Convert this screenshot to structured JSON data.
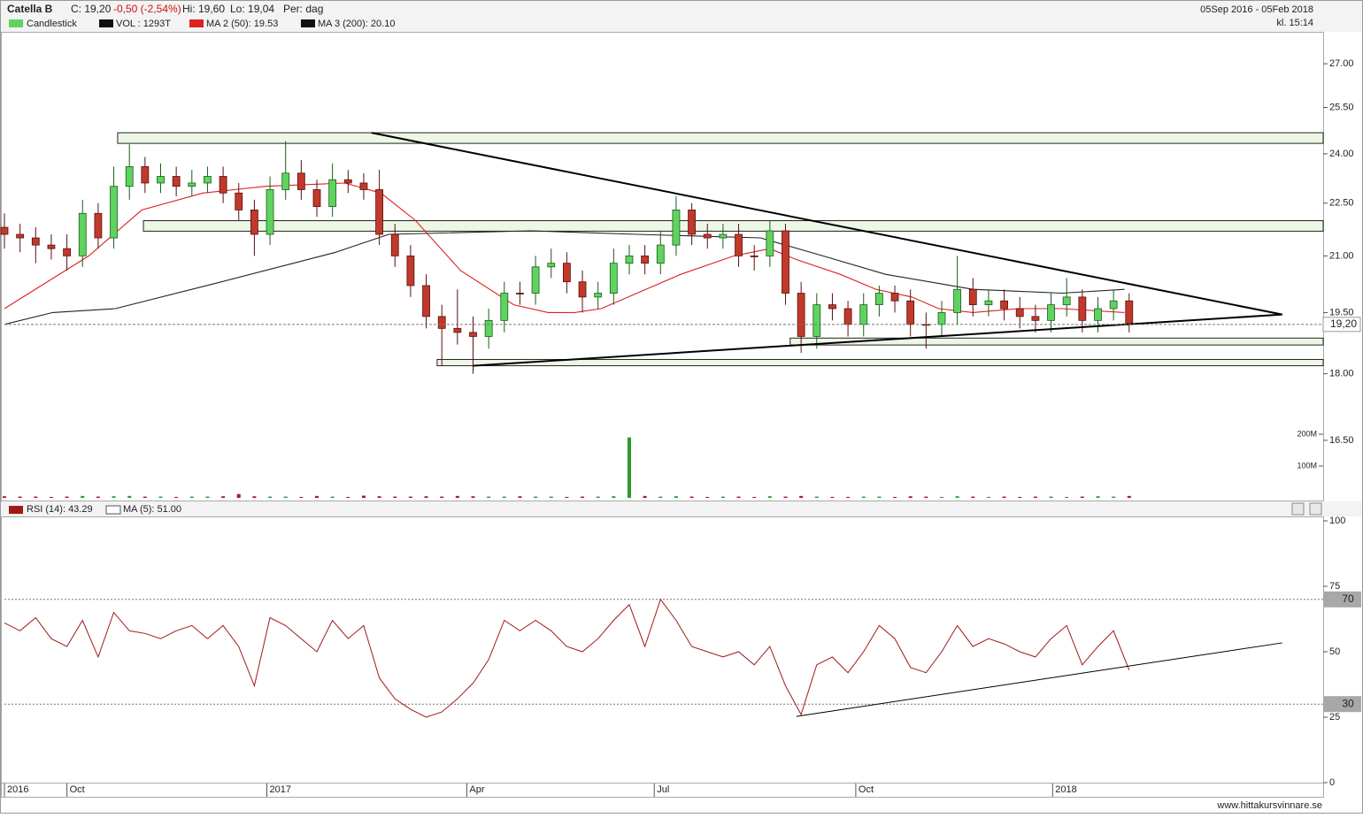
{
  "chart_data": {
    "type": "candlestick",
    "header": {
      "symbol": "Catella B",
      "close": "C: 19,20",
      "change": "-0,50 (-2,54%)",
      "high": "Hi: 19,60",
      "low": "Lo: 19,04",
      "period": "Per: dag",
      "range": "05Sep 2016 - 05Feb 2018",
      "time": "kl. 15:14"
    },
    "legend": {
      "candles": "Candlestick",
      "volume": "VOL : 1293T",
      "ma50": "MA 2 (50): 19.53",
      "ma200": "MA 3 (200): 20.10"
    },
    "footer": "www.hittakursvinnare.se",
    "log_scale": true,
    "up_color": "#5fd35f",
    "down_color": "#c0392b",
    "xlim": [
      0,
      84.42
    ],
    "xticks": [
      {
        "value": 0,
        "label": "2016"
      },
      {
        "value": 4.0,
        "label": "Oct"
      },
      {
        "value": 16.8,
        "label": "2017"
      },
      {
        "value": 29.6,
        "label": "Apr"
      },
      {
        "value": 41.6,
        "label": "Jul"
      },
      {
        "value": 54.5,
        "label": "Oct"
      },
      {
        "value": 67.1,
        "label": "2018"
      }
    ],
    "ylim": [
      15.25,
      28.15
    ],
    "yticks": [
      {
        "value": 27,
        "label": "27.00"
      },
      {
        "value": 25.5,
        "label": "25.50"
      },
      {
        "value": 24,
        "label": "24.00"
      },
      {
        "value": 22.5,
        "label": "22.50"
      },
      {
        "value": 21,
        "label": "21.00"
      },
      {
        "value": 19.5,
        "label": "19.50"
      },
      {
        "value": 18,
        "label": "18.00"
      },
      {
        "value": 16.5,
        "label": "16.50"
      }
    ],
    "x": [
      0,
      1,
      2,
      3,
      4,
      5,
      6,
      7,
      8,
      9,
      10,
      11,
      12,
      13,
      14,
      15,
      16,
      17,
      18,
      19,
      20,
      21,
      22,
      23,
      24,
      25,
      26,
      27,
      28,
      29,
      30,
      31,
      32,
      33,
      34,
      35,
      36,
      37,
      38,
      39,
      40,
      41,
      42,
      43,
      44,
      45,
      46,
      47,
      48,
      49,
      50,
      51,
      52,
      53,
      54,
      55,
      56,
      57,
      58,
      59,
      60,
      61,
      62,
      63,
      64,
      65,
      66,
      67,
      68,
      69,
      70,
      71,
      72
    ],
    "open": [
      21.8,
      21.6,
      21.5,
      21.3,
      21.2,
      21.0,
      22.2,
      21.5,
      23.0,
      23.6,
      23.1,
      23.3,
      23.0,
      23.1,
      23.3,
      22.8,
      22.3,
      21.6,
      22.9,
      23.4,
      22.9,
      22.4,
      23.2,
      23.1,
      22.9,
      21.6,
      21.0,
      20.2,
      19.4,
      19.1,
      19.0,
      18.9,
      19.3,
      20.0,
      20.0,
      20.7,
      20.8,
      20.3,
      19.9,
      20.0,
      20.8,
      21.0,
      20.8,
      21.3,
      22.3,
      21.6,
      21.5,
      21.6,
      21.0,
      21.0,
      21.7,
      20.0,
      18.9,
      19.7,
      19.6,
      19.2,
      19.7,
      20.0,
      19.8,
      19.2,
      19.2,
      19.5,
      20.1,
      19.7,
      19.8,
      19.6,
      19.4,
      19.3,
      19.7,
      19.9,
      19.3,
      19.6,
      19.8
    ],
    "high": [
      22.2,
      21.9,
      21.8,
      21.6,
      21.6,
      22.6,
      22.5,
      23.6,
      24.3,
      23.9,
      23.7,
      23.6,
      23.5,
      23.6,
      23.6,
      23.1,
      22.6,
      23.3,
      24.4,
      23.8,
      23.2,
      23.7,
      23.5,
      23.4,
      23.5,
      21.9,
      21.3,
      20.5,
      19.7,
      20.1,
      19.4,
      19.6,
      20.3,
      20.3,
      21.0,
      21.2,
      21.1,
      20.6,
      20.3,
      21.2,
      21.3,
      21.3,
      21.7,
      22.7,
      22.5,
      21.9,
      21.9,
      21.9,
      21.3,
      22.0,
      21.9,
      20.3,
      20.0,
      20.0,
      19.8,
      20.0,
      20.2,
      20.2,
      20.1,
      19.5,
      19.8,
      21.0,
      20.4,
      20.1,
      20.1,
      19.9,
      19.7,
      20.0,
      20.4,
      20.1,
      19.9,
      20.1,
      20.0
    ],
    "low": [
      21.2,
      21.1,
      20.8,
      20.9,
      20.6,
      20.7,
      21.2,
      21.2,
      22.6,
      22.8,
      22.8,
      22.7,
      22.7,
      22.8,
      22.5,
      22.0,
      21.0,
      21.3,
      22.6,
      22.6,
      22.1,
      22.1,
      22.8,
      22.6,
      21.3,
      20.7,
      19.9,
      19.1,
      18.2,
      18.7,
      18.0,
      18.6,
      19.0,
      19.7,
      19.7,
      20.4,
      20.0,
      19.5,
      19.6,
      19.7,
      20.5,
      20.5,
      20.5,
      21.0,
      21.3,
      21.2,
      21.2,
      20.7,
      20.6,
      20.7,
      19.7,
      18.5,
      18.6,
      19.3,
      18.9,
      18.9,
      19.4,
      19.5,
      18.9,
      18.6,
      18.9,
      19.2,
      19.4,
      19.4,
      19.3,
      19.1,
      19.0,
      19.0,
      19.4,
      19.0,
      19.0,
      19.3,
      19.0
    ],
    "close": [
      21.6,
      21.5,
      21.3,
      21.2,
      21.0,
      22.2,
      21.5,
      23.0,
      23.6,
      23.1,
      23.3,
      23.0,
      23.1,
      23.3,
      22.8,
      22.3,
      21.6,
      22.9,
      23.4,
      22.9,
      22.4,
      23.2,
      23.1,
      22.9,
      21.6,
      21.0,
      20.2,
      19.4,
      19.1,
      19.0,
      18.9,
      19.3,
      20.0,
      20.0,
      20.7,
      20.8,
      20.3,
      19.9,
      20.0,
      20.8,
      21.0,
      20.8,
      21.3,
      22.3,
      21.6,
      21.5,
      21.6,
      21.0,
      21.0,
      21.7,
      20.0,
      18.9,
      19.7,
      19.6,
      19.2,
      19.7,
      20.0,
      19.8,
      19.2,
      19.2,
      19.5,
      20.1,
      19.7,
      19.8,
      19.6,
      19.4,
      19.3,
      19.7,
      19.9,
      19.3,
      19.6,
      19.8,
      19.2
    ],
    "series": [
      {
        "name": "MA 2 (50)",
        "color": "#e02020",
        "x": [
          0,
          5.4,
          8.8,
          12.7,
          16.7,
          21.8,
          24.1,
          26.3,
          29.2,
          32.6,
          34.8,
          36.5,
          38.2,
          40.5,
          43.3,
          46.7,
          49,
          50.7,
          53.5,
          55.8,
          58.1,
          59.8,
          62,
          64.9,
          67.7,
          71.7
        ],
        "values": [
          19.6,
          21.0,
          22.3,
          22.8,
          23.0,
          23.1,
          22.8,
          22.0,
          20.6,
          19.7,
          19.5,
          19.5,
          19.6,
          20.0,
          20.5,
          21.0,
          21.2,
          20.9,
          20.5,
          20.1,
          19.9,
          19.6,
          19.5,
          19.6,
          19.6,
          19.5
        ]
      },
      {
        "name": "MA 3 (200)",
        "color": "#222222",
        "x": [
          0,
          3.1,
          7.1,
          13.9,
          21.2,
          24.6,
          33.7,
          40.5,
          48.4,
          52.4,
          56.4,
          62,
          67.7,
          71.7
        ],
        "values": [
          19.2,
          19.5,
          19.6,
          20.3,
          21.1,
          21.6,
          21.7,
          21.6,
          21.5,
          21.0,
          20.5,
          20.1,
          20.0,
          20.1
        ]
      }
    ],
    "last_price": {
      "value": 19.2,
      "label": "19,20"
    },
    "zones": [
      {
        "x_start": 7.25,
        "low": 24.33,
        "high": 24.67
      },
      {
        "x_start": 8.9,
        "low": 21.69,
        "high": 21.99
      },
      {
        "x_start": 50.3,
        "low": 18.69,
        "high": 18.86
      },
      {
        "x_start": 27.7,
        "low": 18.19,
        "high": 18.34
      }
    ],
    "trendlines": [
      {
        "x": [
          23.5,
          81.8
        ],
        "values": [
          24.67,
          19.45
        ]
      },
      {
        "x": [
          30.0,
          81.8
        ],
        "values": [
          18.19,
          19.45
        ]
      }
    ],
    "volume": {
      "ylim": [
        0,
        200
      ],
      "yticks": [
        {
          "value": 200,
          "label": "200M"
        },
        {
          "value": 100,
          "label": "100M"
        }
      ],
      "values": [
        5,
        4,
        4,
        3,
        4,
        6,
        4,
        5,
        6,
        4,
        4,
        3,
        4,
        4,
        5,
        12,
        5,
        4,
        4,
        3,
        6,
        4,
        3,
        7,
        5,
        4,
        4,
        5,
        4,
        6,
        5,
        4,
        4,
        5,
        4,
        4,
        3,
        4,
        4,
        5,
        190,
        6,
        4,
        5,
        4,
        3,
        4,
        4,
        3,
        5,
        4,
        6,
        4,
        3,
        3,
        4,
        4,
        3,
        5,
        4,
        3,
        5,
        4,
        3,
        4,
        3,
        4,
        4,
        3,
        4,
        5,
        4,
        6
      ]
    },
    "rsi": {
      "legend": "RSI (14): 43.29",
      "ma_legend": "MA (5): 51.00",
      "color": "#a01818",
      "ylim": [
        0,
        100
      ],
      "yticks": [
        0,
        25,
        50,
        75,
        100
      ],
      "levels": [
        70,
        30
      ],
      "values": [
        61,
        58,
        63,
        55,
        52,
        62,
        48,
        65,
        58,
        57,
        55,
        58,
        60,
        55,
        60,
        52,
        37,
        63,
        60,
        55,
        50,
        62,
        55,
        60,
        40,
        32,
        28,
        25,
        27,
        32,
        38,
        47,
        62,
        58,
        62,
        58,
        52,
        50,
        55,
        62,
        68,
        52,
        70,
        62,
        52,
        50,
        48,
        50,
        45,
        52,
        37,
        26,
        45,
        48,
        42,
        50,
        60,
        55,
        44,
        42,
        50,
        60,
        52,
        55,
        53,
        50,
        48,
        55,
        60,
        45,
        52,
        58,
        43
      ],
      "trendline": {
        "x": [
          50.7,
          81.8
        ],
        "values": [
          25.3,
          53.4
        ]
      }
    }
  }
}
